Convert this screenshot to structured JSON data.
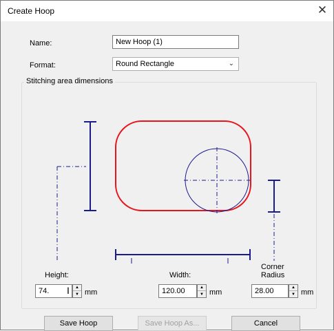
{
  "window": {
    "title": "Create Hoop"
  },
  "form": {
    "name_label": "Name:",
    "name_value": "New Hoop (1)",
    "format_label": "Format:",
    "format_value": "Round Rectangle"
  },
  "group": {
    "legend": "Stitching area dimensions"
  },
  "dimensions": {
    "height_label": "Height:",
    "height_value": "74.",
    "width_label": "Width:",
    "width_value": "120.00",
    "corner_label_line1": "Corner",
    "corner_label_line2": "Radius",
    "corner_value": "28.00",
    "unit": "mm"
  },
  "buttons": {
    "save": "Save Hoop",
    "save_as": "Save Hoop As...",
    "cancel": "Cancel"
  },
  "colors": {
    "hoop_outline": "#e8141c",
    "dimension_lines": "#1a1a8c"
  },
  "icons": {
    "close": "close-icon",
    "dropdown": "chevron-down-icon",
    "spin_up": "spin-up-arrow-icon",
    "spin_down": "spin-down-arrow-icon"
  }
}
